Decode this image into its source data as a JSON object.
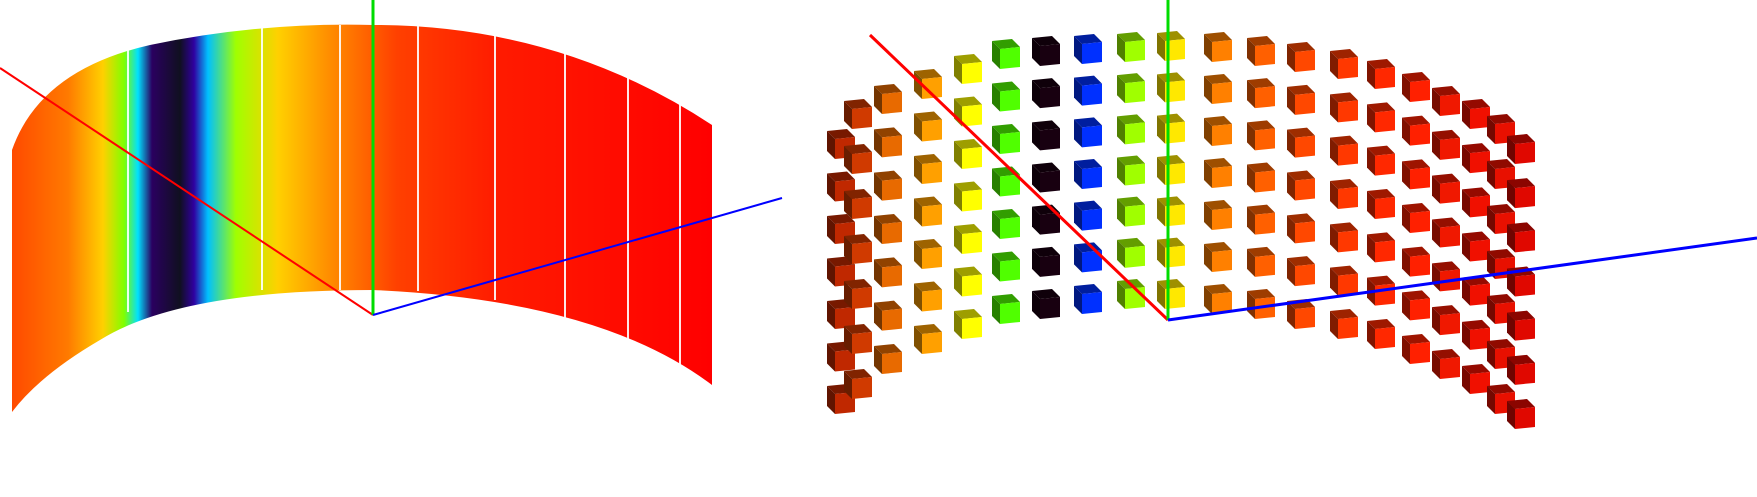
{
  "scene": {
    "axis_colors": {
      "x": "#ff0000",
      "y": "#00dd00",
      "z": "#0000ff"
    },
    "left_view": {
      "kind": "cylindrical-surface",
      "gradient_colors": [
        "#ff4a00",
        "#ff7a00",
        "#ffd000",
        "#80ff00",
        "#00e0ff",
        "#2a0060",
        "#101020",
        "#3000a0",
        "#00c0ff",
        "#a0ff00",
        "#ffd000",
        "#ff9000",
        "#ff4000",
        "#ff1a00",
        "#ff0000"
      ]
    },
    "right_view": {
      "kind": "cube-grid",
      "rows": 7,
      "column_colors": [
        "#c02800",
        "#d03a00",
        "#e86a00",
        "#ffa000",
        "#ffff00",
        "#50ff00",
        "#180010",
        "#0030ff",
        "#a0ff00",
        "#ffe800",
        "#ff8000",
        "#ff6000",
        "#ff4800",
        "#ff3800",
        "#ff2800",
        "#ff2000",
        "#f01800",
        "#f01000",
        "#e81000",
        "#e00800"
      ]
    }
  }
}
